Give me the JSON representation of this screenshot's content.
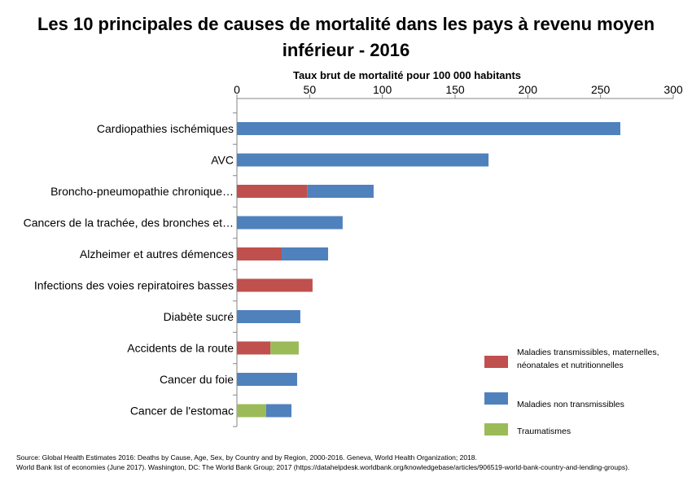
{
  "chart_data": {
    "type": "bar",
    "orientation": "horizontal",
    "stacked": true,
    "title": "Les 10 principales de causes de mortalité dans les pays à revenu moyen inférieur - 2016",
    "xlabel": "Taux brut de mortalité pour 100 000 habitants",
    "xlim": [
      0,
      300
    ],
    "xticks": [
      0,
      50,
      100,
      150,
      200,
      250,
      300
    ],
    "x_axis_position": "top",
    "grid": false,
    "legend_position": "bottom-right",
    "categories": [
      "Cardiopathies ischémiques",
      "AVC",
      "Broncho-pneumopathie chronique…",
      "Cancers de la trachée, des bronches et…",
      "Alzheimer et autres démences",
      "Infections des voies repiratoires basses",
      "Diabète sucré",
      "Accidents de la route",
      "Cancer du foie",
      "Cancer de l'estomac"
    ],
    "series": [
      {
        "name": "Maladies transmissibles, maternelles, néonatales et nutritionnelles",
        "color": "#c0504d",
        "values": [
          0,
          0,
          48.3,
          0,
          30.8,
          52,
          0,
          23.1,
          0,
          0
        ]
      },
      {
        "name": "Traumatismes",
        "color": "#9bbb59",
        "values": [
          0,
          0,
          0,
          0,
          0,
          0,
          0,
          19.4,
          0,
          20.1
        ]
      },
      {
        "name": "Maladies non transmissibles",
        "color": "#4f81bd",
        "values": [
          263.6,
          173,
          45.7,
          72.7,
          31.9,
          0,
          43.6,
          0,
          41.4,
          17.4
        ]
      }
    ],
    "legend": [
      {
        "label": "Maladies transmissibles, maternelles, néonatales et nutritionnelles",
        "color": "#c0504d"
      },
      {
        "label": "Maladies non transmissibles",
        "color": "#4f81bd"
      },
      {
        "label": "Traumatismes",
        "color": "#9bbb59"
      }
    ]
  },
  "source": {
    "line1": "Source: Global Health Estimates 2016: Deaths by Cause, Age, Sex, by Country and by Region, 2000-2016. Geneva, World Health Organization; 2018.",
    "line2": "World Bank list of economies (June 2017). Washington, DC: The World Bank Group; 2017 (https://datahelpdesk.worldbank.org/knowledgebase/articles/906519-world-bank-country-and-lending-groups)."
  }
}
